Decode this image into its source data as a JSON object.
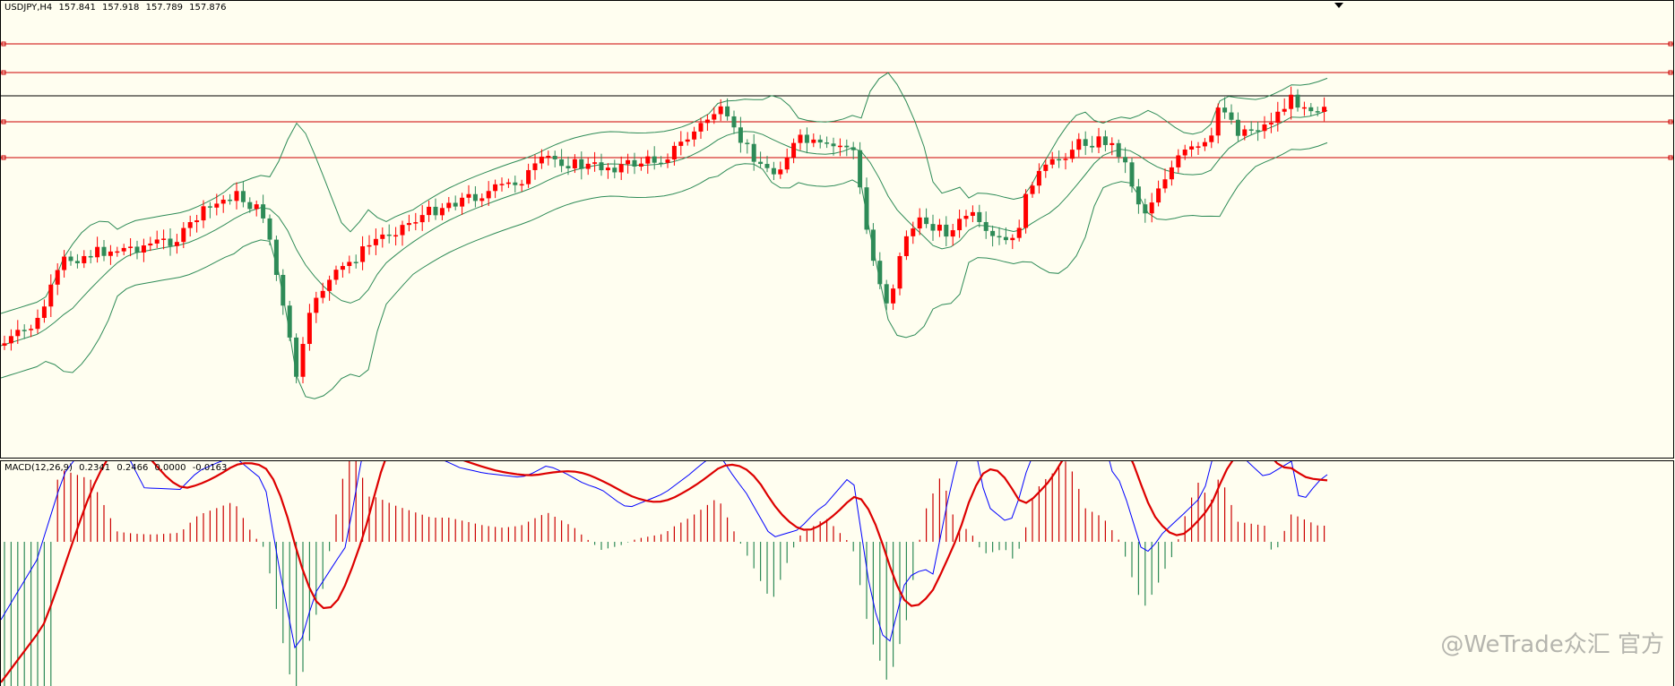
{
  "chart_header": {
    "symbol": "USDJPY,H4",
    "open": "157.841",
    "high": "157.918",
    "low": "157.789",
    "close": "157.876"
  },
  "macd_header": {
    "name": "MACD(12,26,9)",
    "main": "0.2341",
    "signal": "0.2466",
    "v3": "0.0000",
    "v4": "-0.0163"
  },
  "watermark": "@WeTrade众汇 官方",
  "colors": {
    "background": "#fffef0",
    "bull_candle": "#ff0000",
    "bear_candle": "#2e8b57",
    "bands": "#2e8b57",
    "hlines": "#cc0000",
    "price_line": "#000000",
    "macd_main": "#0000ff",
    "macd_signal": "#dd0000",
    "hist_pos": "#cc0000",
    "hist_neg": "#2e8b57"
  }
}
